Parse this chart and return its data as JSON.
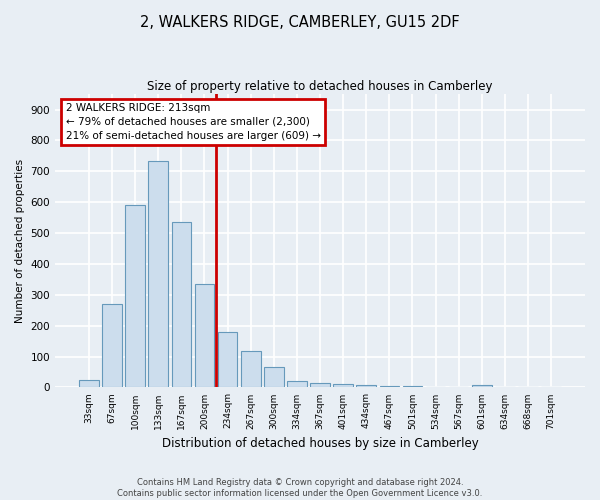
{
  "title": "2, WALKERS RIDGE, CAMBERLEY, GU15 2DF",
  "subtitle": "Size of property relative to detached houses in Camberley",
  "xlabel": "Distribution of detached houses by size in Camberley",
  "ylabel": "Number of detached properties",
  "categories": [
    "33sqm",
    "67sqm",
    "100sqm",
    "133sqm",
    "167sqm",
    "200sqm",
    "234sqm",
    "267sqm",
    "300sqm",
    "334sqm",
    "367sqm",
    "401sqm",
    "434sqm",
    "467sqm",
    "501sqm",
    "534sqm",
    "567sqm",
    "601sqm",
    "634sqm",
    "668sqm",
    "701sqm"
  ],
  "values": [
    25,
    270,
    590,
    735,
    535,
    335,
    178,
    118,
    67,
    22,
    15,
    12,
    8,
    6,
    5,
    0,
    0,
    8,
    0,
    0,
    0
  ],
  "bar_color": "#ccdded",
  "bar_edge_color": "#6699bb",
  "background_color": "#e8eef4",
  "grid_color": "#ffffff",
  "vline_color": "#cc0000",
  "annotation_text": "2 WALKERS RIDGE: 213sqm\n← 79% of detached houses are smaller (2,300)\n21% of semi-detached houses are larger (609) →",
  "annotation_box_color": "#cc0000",
  "ylim": [
    0,
    950
  ],
  "yticks": [
    0,
    100,
    200,
    300,
    400,
    500,
    600,
    700,
    800,
    900
  ],
  "footer_line1": "Contains HM Land Registry data © Crown copyright and database right 2024.",
  "footer_line2": "Contains public sector information licensed under the Open Government Licence v3.0."
}
